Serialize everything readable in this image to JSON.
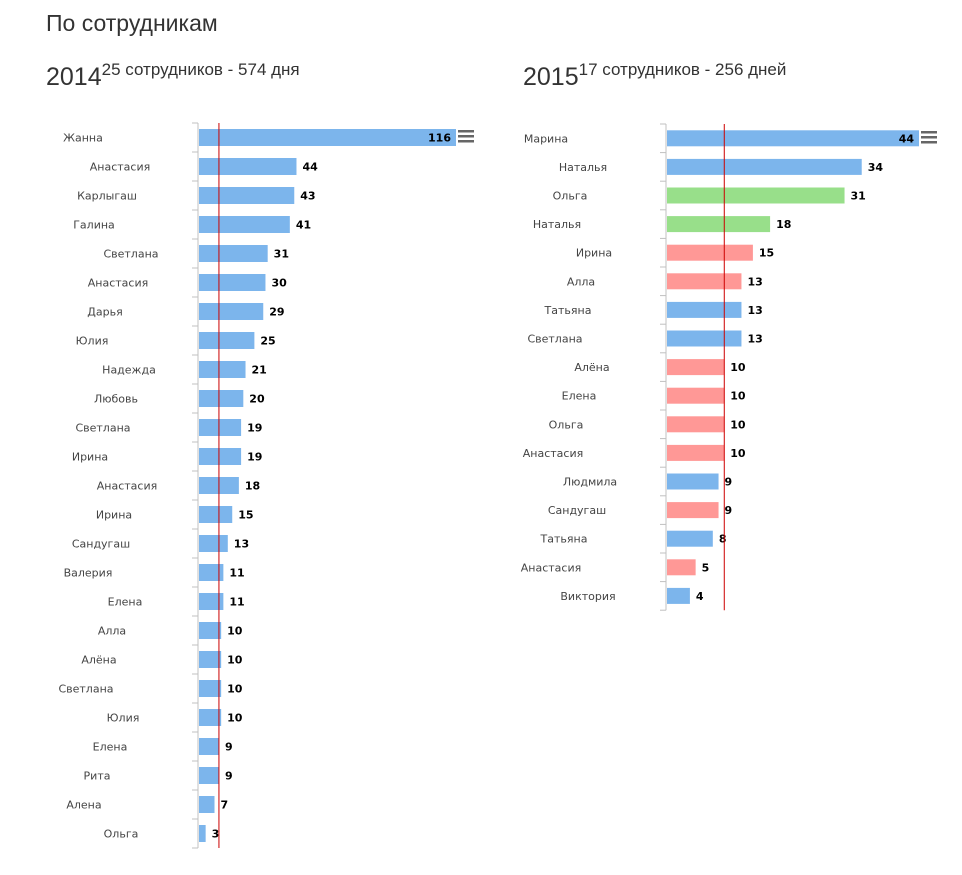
{
  "page": {
    "title": "По сотрудникам"
  },
  "colors": {
    "blue": "#7cb5ec",
    "green": "#98df8a",
    "red": "#ff9896",
    "reference_line": "#cc0000",
    "axis": "#c0c0c0"
  },
  "chart_data": [
    {
      "type": "bar",
      "year": "2014",
      "subtitle": "25 сотрудников - 574 дня",
      "reference_value": 9,
      "xlim": [
        0,
        116
      ],
      "categories": [
        "Жанна",
        "Анастасия",
        "Карлыгаш",
        "Галина",
        "Светлана",
        "Анастасия",
        "Дарья",
        "Юлия",
        "Надежда",
        "Любовь",
        "Светлана",
        "Ирина",
        "Анастасия",
        "Ирина",
        "Сандугаш",
        "Валерия",
        "Елена",
        "Алла",
        "Алёна",
        "Светлана",
        "Юлия",
        "Елена",
        "Рита",
        "Алена",
        "Ольга"
      ],
      "values": [
        116,
        44,
        43,
        41,
        31,
        30,
        29,
        25,
        21,
        20,
        19,
        19,
        18,
        15,
        13,
        11,
        11,
        10,
        10,
        10,
        10,
        9,
        9,
        7,
        3
      ],
      "colors": [
        "blue",
        "blue",
        "blue",
        "blue",
        "blue",
        "blue",
        "blue",
        "blue",
        "blue",
        "blue",
        "blue",
        "blue",
        "blue",
        "blue",
        "blue",
        "blue",
        "blue",
        "blue",
        "blue",
        "blue",
        "blue",
        "blue",
        "blue",
        "blue",
        "blue"
      ]
    },
    {
      "type": "bar",
      "year": "2015",
      "subtitle": "17 сотрудников - 256 дней",
      "reference_value": 10,
      "xlim": [
        0,
        44
      ],
      "categories": [
        "Марина",
        "Наталья",
        "Ольга",
        "Наталья",
        "Ирина",
        "Алла",
        "Татьяна",
        "Светлана",
        "Алёна",
        "Елена",
        "Ольга",
        "Анастасия",
        "Людмила",
        "Сандугаш",
        "Татьяна",
        "Анастасия",
        "Виктория"
      ],
      "values": [
        44,
        34,
        31,
        18,
        15,
        13,
        13,
        13,
        10,
        10,
        10,
        10,
        9,
        9,
        8,
        5,
        4
      ],
      "colors": [
        "blue",
        "blue",
        "green",
        "green",
        "red",
        "red",
        "blue",
        "blue",
        "red",
        "red",
        "red",
        "red",
        "blue",
        "red",
        "blue",
        "red",
        "blue"
      ]
    }
  ]
}
